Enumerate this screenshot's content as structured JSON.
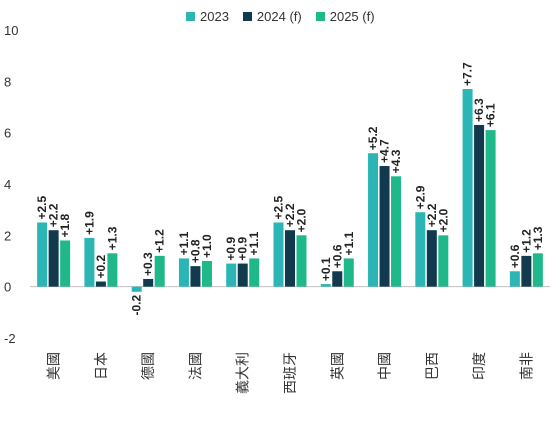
{
  "chart_data": {
    "type": "bar",
    "categories": [
      "美國",
      "日本",
      "德國",
      "法國",
      "義大利",
      "西班牙",
      "英國",
      "中國",
      "巴西",
      "印度",
      "南非"
    ],
    "series": [
      {
        "name": "2023",
        "color": "#2bb5b5",
        "values": [
          2.5,
          1.9,
          -0.2,
          1.1,
          0.9,
          2.5,
          0.1,
          5.2,
          2.9,
          7.7,
          0.6
        ],
        "labels": [
          "+2.5",
          "+1.9",
          "-0.2",
          "+1.1",
          "+0.9",
          "+2.5",
          "+0.1",
          "+5.2",
          "+2.9",
          "+7.7",
          "+0.6"
        ]
      },
      {
        "name": "2024 (f)",
        "color": "#123a4f",
        "values": [
          2.2,
          0.2,
          0.3,
          0.8,
          0.9,
          2.2,
          0.6,
          4.7,
          2.2,
          6.3,
          1.2
        ],
        "labels": [
          "+2.2",
          "+0.2",
          "+0.3",
          "+0.8",
          "+0.9",
          "+2.2",
          "+0.6",
          "+4.7",
          "+2.2",
          "+6.3",
          "+1.2"
        ]
      },
      {
        "name": "2025 (f)",
        "color": "#1fb88a",
        "values": [
          1.8,
          1.3,
          1.2,
          1.0,
          1.1,
          2.0,
          1.1,
          4.3,
          2.0,
          6.1,
          1.3
        ],
        "labels": [
          "+1.8",
          "+1.3",
          "+1.2",
          "+1.0",
          "+1.1",
          "+2.0",
          "+1.1",
          "+4.3",
          "+2.0",
          "+6.1",
          "+1.3"
        ]
      }
    ],
    "ylim": [
      -2,
      10
    ],
    "yticks": [
      -2,
      0,
      2,
      4,
      6,
      8,
      10
    ],
    "legend_position": "top",
    "grid": false,
    "zero_line_color": "#bfbfbf"
  }
}
